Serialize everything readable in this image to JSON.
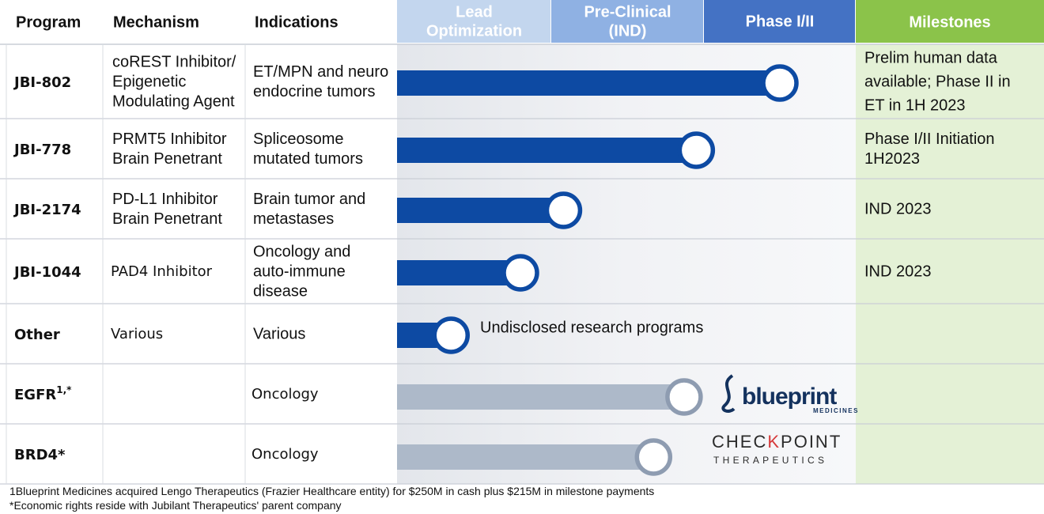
{
  "chart_data": {
    "type": "bar",
    "header": {
      "program": "Program",
      "mechanism": "Mechanism",
      "indications": "Indications",
      "milestones": "Milestones"
    },
    "phases": [
      {
        "label_lines": [
          "Lead",
          "Optimization"
        ],
        "color": "#c3d6ee",
        "text_color": "#ffffff"
      },
      {
        "label_lines": [
          "Pre-Clinical",
          "(IND)"
        ],
        "color": "#8fb1e3",
        "text_color": "#ffffff"
      },
      {
        "label_lines": [
          "Phase I/II"
        ],
        "color": "#4472c4",
        "text_color": "#ffffff"
      }
    ],
    "milestones_color": "#8bc34a",
    "rows": [
      {
        "program": "JBI-802",
        "mechanism": [
          "coREST Inhibitor/",
          "Epigenetic",
          "Modulating Agent"
        ],
        "indications": [
          "ET/MPN and neuro",
          "endocrine tumors"
        ],
        "progress": 2.5,
        "status": "internal",
        "annotation": "",
        "partner": "",
        "milestone": [
          "Prelim human data",
          "available; Phase II in",
          "ET in 1H 2023"
        ]
      },
      {
        "program": "JBI-778",
        "mechanism": [
          "PRMT5 Inhibitor",
          "Brain Penetrant"
        ],
        "indications": [
          "Spliceosome",
          "mutated tumors"
        ],
        "progress": 1.95,
        "status": "internal",
        "annotation": "",
        "partner": "",
        "milestone": [
          "Phase I/II Initiation",
          "1H2023"
        ]
      },
      {
        "program": "JBI-2174",
        "mechanism": [
          "PD-L1 Inhibitor",
          "Brain Penetrant"
        ],
        "indications": [
          "Brain tumor and",
          "metastases"
        ],
        "progress": 1.08,
        "status": "internal",
        "annotation": "",
        "partner": "",
        "milestone": [
          "IND 2023"
        ]
      },
      {
        "program": "JBI-1044",
        "mechanism": [
          "PAD4 Inhibitor"
        ],
        "indications": [
          "Oncology and",
          "auto-immune",
          "disease"
        ],
        "progress": 0.8,
        "status": "internal",
        "annotation": "",
        "partner": "",
        "milestone": [
          "IND 2023"
        ]
      },
      {
        "program": "Other",
        "mechanism": [
          "Various"
        ],
        "indications": [
          "Various"
        ],
        "progress": 0.35,
        "status": "internal",
        "annotation": "Undisclosed research programs",
        "partner": "",
        "milestone": []
      },
      {
        "program": "EGFR",
        "program_sup": "1,*",
        "mechanism": [],
        "indications": [
          "Oncology"
        ],
        "progress": 1.87,
        "status": "partnered",
        "annotation": "",
        "partner": "blueprint",
        "milestone": []
      },
      {
        "program": "BRD4*",
        "mechanism": [],
        "indications": [
          "Oncology"
        ],
        "progress": 1.67,
        "status": "partnered",
        "annotation": "",
        "partner": "checkpoint",
        "milestone": []
      }
    ],
    "colors": {
      "internal": "#0d4aa3",
      "partnered": "#adb9c9",
      "internal_ring": "#0d4aa3",
      "partnered_ring": "#8e9cb1"
    },
    "partners": {
      "blueprint": {
        "word": "blueprint",
        "sub": "MEDICINES"
      },
      "checkpoint": {
        "word_a": "CHEC",
        "word_b": "K",
        "word_c": "POINT",
        "sub": "THERAPEUTICS"
      }
    },
    "footnotes": [
      "1Blueprint Medicines acquired Lengo Therapeutics (Frazier Healthcare entity) for $250M in cash plus $215M in milestone payments",
      "*Economic rights reside with Jubilant Therapeutics' parent company"
    ]
  }
}
